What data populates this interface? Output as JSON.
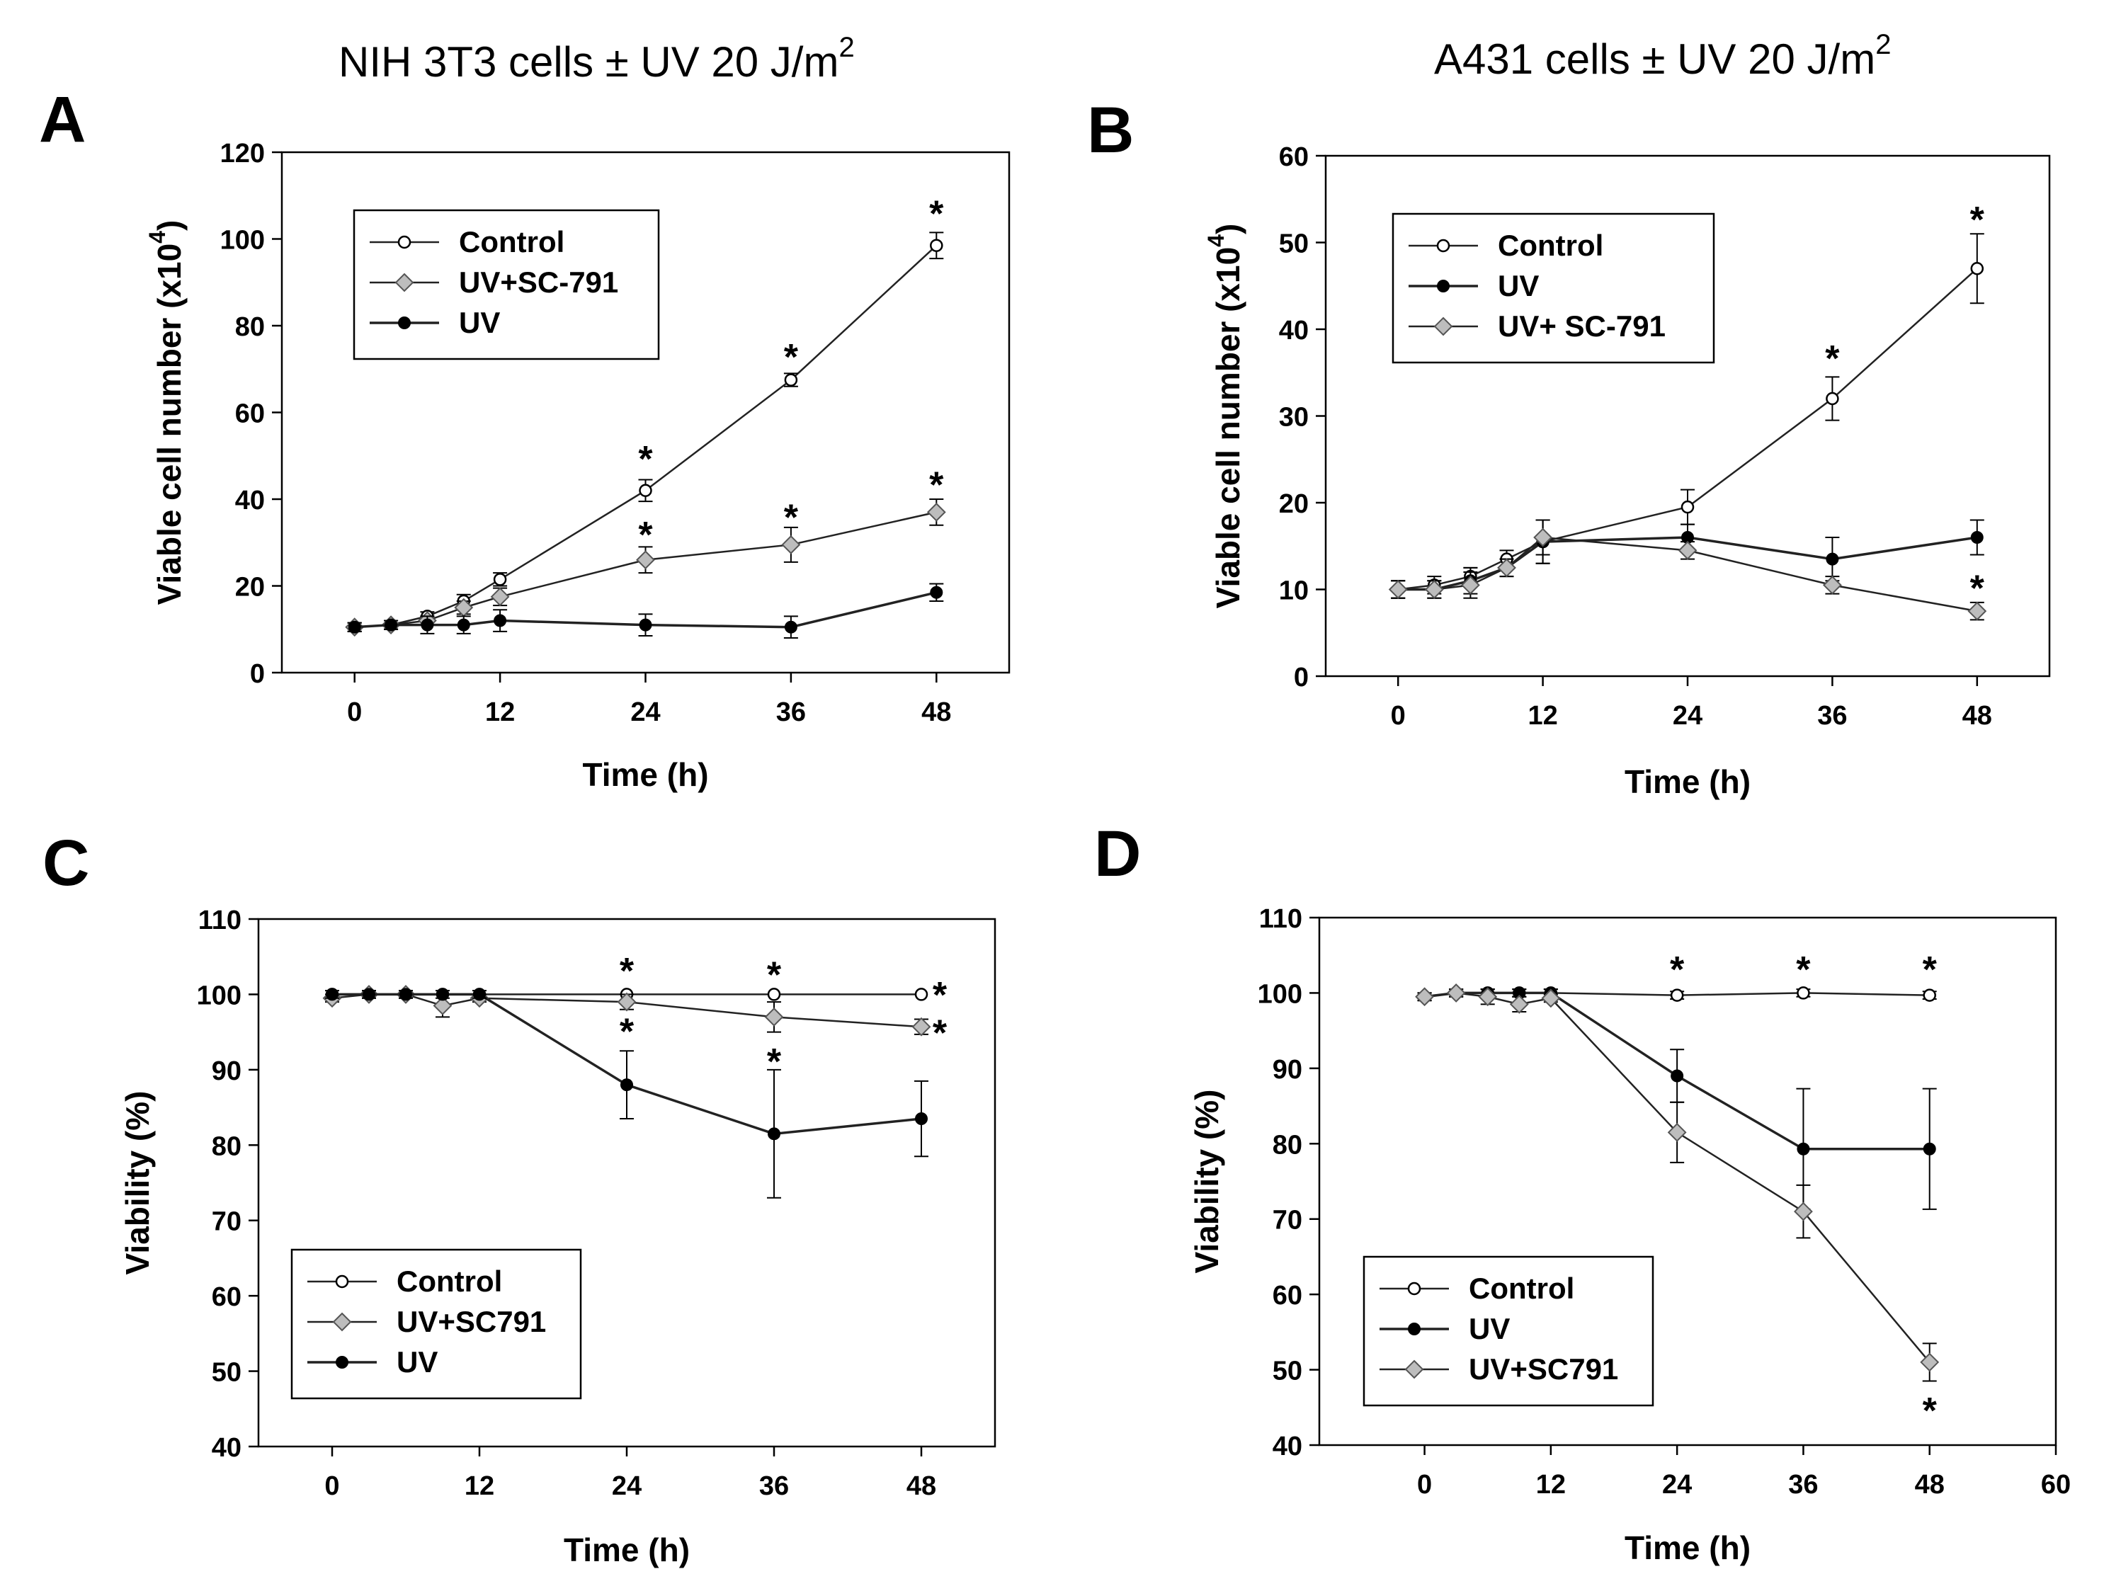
{
  "figure_title_left": "NIH 3T3 cells ± UV 20 J/m",
  "figure_title_left_sup": "2",
  "figure_title_right": "A431 cells ± UV 20 J/m",
  "figure_title_right_sup": "2",
  "chart_data": [
    {
      "panel": "A",
      "type": "line",
      "title": "NIH 3T3 cells ± UV 20 J/m2",
      "xlabel": "Time (h)",
      "ylabel": "Viable cell number (x10",
      "ylabel_sup": "4",
      "ylabel_close": ")",
      "xlim": [
        -6,
        54
      ],
      "ylim": [
        0,
        120
      ],
      "xticks": [
        0,
        12,
        24,
        36,
        48
      ],
      "yticks": [
        0,
        20,
        40,
        60,
        80,
        100,
        120
      ],
      "legend_position": "upper-left",
      "series": [
        {
          "name": "Control",
          "marker": "open-circle",
          "x": [
            0,
            3,
            6,
            9,
            12,
            24,
            36,
            48
          ],
          "values": [
            10.5,
            11,
            13,
            16.5,
            21.5,
            42,
            67.5,
            98.5
          ],
          "errors": [
            1,
            1,
            1,
            1.5,
            1.5,
            2.5,
            1.5,
            3
          ]
        },
        {
          "name": "UV+SC-791",
          "marker": "gray-diamond",
          "x": [
            0,
            3,
            6,
            9,
            12,
            24,
            36,
            48
          ],
          "values": [
            10.5,
            11,
            12,
            15,
            17.5,
            26,
            29.5,
            37
          ],
          "errors": [
            1,
            1,
            1,
            1.5,
            2,
            3,
            4,
            3
          ]
        },
        {
          "name": "UV",
          "marker": "filled-circle",
          "x": [
            0,
            3,
            6,
            9,
            12,
            24,
            36,
            48
          ],
          "values": [
            10.5,
            11,
            11,
            11,
            12,
            11,
            10.5,
            18.5
          ],
          "errors": [
            1,
            1,
            2,
            2,
            2.5,
            2.5,
            2.5,
            2
          ]
        }
      ],
      "annotations": [
        {
          "text": "*",
          "x": 24,
          "y": 50
        },
        {
          "text": "*",
          "x": 24,
          "y": 32.5
        },
        {
          "text": "*",
          "x": 36,
          "y": 73.5
        },
        {
          "text": "*",
          "x": 36,
          "y": 36.5
        },
        {
          "text": "*",
          "x": 48,
          "y": 106.5
        },
        {
          "text": "*",
          "x": 48,
          "y": 44
        }
      ]
    },
    {
      "panel": "B",
      "type": "line",
      "title": "A431 cells ± UV 20 J/m2",
      "xlabel": "Time (h)",
      "ylabel": "Viable cell number (x10",
      "ylabel_sup": "4",
      "ylabel_close": ")",
      "xlim": [
        -6,
        54
      ],
      "ylim": [
        0,
        60
      ],
      "xticks": [
        0,
        12,
        24,
        36,
        48
      ],
      "yticks": [
        0,
        10,
        20,
        30,
        40,
        50,
        60
      ],
      "legend_position": "upper-left",
      "series": [
        {
          "name": "Control",
          "marker": "open-circle",
          "x": [
            0,
            3,
            6,
            9,
            12,
            24,
            36,
            48
          ],
          "values": [
            10,
            10.5,
            11.5,
            13.5,
            15.5,
            19.5,
            32,
            47
          ],
          "errors": [
            1,
            1,
            1,
            1,
            2.5,
            2,
            2.5,
            4
          ]
        },
        {
          "name": "UV",
          "marker": "filled-circle",
          "x": [
            0,
            3,
            6,
            9,
            12,
            24,
            36,
            48
          ],
          "values": [
            10,
            10,
            11,
            12.5,
            15.5,
            16,
            13.5,
            16
          ],
          "errors": [
            1,
            1,
            1.5,
            1,
            2.5,
            1.5,
            2.5,
            2
          ]
        },
        {
          "name": "UV+ SC-791",
          "marker": "gray-diamond",
          "x": [
            0,
            3,
            6,
            9,
            12,
            24,
            36,
            48
          ],
          "values": [
            10,
            10,
            10.5,
            12.5,
            16,
            14.5,
            10.5,
            7.5
          ],
          "errors": [
            1,
            1,
            1.5,
            1,
            2,
            1,
            1,
            1
          ]
        }
      ],
      "annotations": [
        {
          "text": "*",
          "x": 36,
          "y": 37
        },
        {
          "text": "*",
          "x": 48,
          "y": 53
        },
        {
          "text": "*",
          "x": 48,
          "y": 10.5
        }
      ]
    },
    {
      "panel": "C",
      "type": "line",
      "title": "",
      "xlabel": "Time (h)",
      "ylabel": "Viability (%)",
      "ylabel_sup": "",
      "ylabel_close": "",
      "xlim": [
        -6,
        54
      ],
      "ylim": [
        40,
        110
      ],
      "xticks": [
        0,
        12,
        24,
        36,
        48
      ],
      "yticks": [
        40,
        50,
        60,
        70,
        80,
        90,
        100,
        110
      ],
      "legend_position": "lower-left",
      "series": [
        {
          "name": "Control",
          "marker": "open-circle",
          "x": [
            0,
            3,
            6,
            9,
            12,
            24,
            36,
            48
          ],
          "values": [
            100,
            100,
            100,
            100,
            100,
            100,
            100,
            100
          ],
          "errors": [
            0,
            0,
            0,
            0,
            0,
            0,
            0,
            0
          ]
        },
        {
          "name": "UV+SC791",
          "marker": "gray-diamond",
          "x": [
            0,
            3,
            6,
            9,
            12,
            24,
            36,
            48
          ],
          "values": [
            99.5,
            100,
            100,
            98.5,
            99.5,
            99,
            97,
            95.7
          ],
          "errors": [
            0.5,
            0.5,
            0.5,
            1.5,
            0.5,
            1,
            2,
            1
          ]
        },
        {
          "name": "UV",
          "marker": "filled-circle",
          "x": [
            0,
            3,
            6,
            9,
            12,
            24,
            36,
            48
          ],
          "values": [
            100,
            100,
            100,
            100,
            100,
            88,
            81.5,
            83.5
          ],
          "errors": [
            0.5,
            0.5,
            0.5,
            0.5,
            0.5,
            4.5,
            8.5,
            5
          ]
        }
      ],
      "annotations": [
        {
          "text": "*",
          "x": 24,
          "y": 103.5
        },
        {
          "text": "*",
          "x": 24,
          "y": 95.5
        },
        {
          "text": "*",
          "x": 36,
          "y": 103
        },
        {
          "text": "*",
          "x": 36,
          "y": 91.5
        },
        {
          "text": "*",
          "x": 49.5,
          "y": 100.3
        },
        {
          "text": "*",
          "x": 49.5,
          "y": 95.3
        }
      ]
    },
    {
      "panel": "D",
      "type": "line",
      "title": "",
      "xlabel": "Time (h)",
      "ylabel": "Viability (%)",
      "ylabel_sup": "",
      "ylabel_close": "",
      "xlim": [
        -10,
        60
      ],
      "ylim": [
        40,
        110
      ],
      "xticks": [
        0,
        12,
        24,
        36,
        48,
        60
      ],
      "yticks": [
        40,
        50,
        60,
        70,
        80,
        90,
        100,
        110
      ],
      "legend_position": "lower-left",
      "series": [
        {
          "name": "Control",
          "marker": "open-circle",
          "x": [
            0,
            3,
            6,
            9,
            12,
            24,
            36,
            48
          ],
          "values": [
            99.5,
            100,
            100,
            100,
            100,
            99.7,
            100,
            99.7
          ],
          "errors": [
            0.5,
            0.5,
            0.5,
            0.5,
            0.5,
            0.5,
            0.5,
            0.5
          ]
        },
        {
          "name": "UV",
          "marker": "filled-circle",
          "x": [
            0,
            3,
            6,
            9,
            12,
            24,
            36,
            48
          ],
          "values": [
            99.5,
            100,
            100,
            100,
            100,
            89,
            79.3,
            79.3
          ],
          "errors": [
            0.5,
            0.5,
            0.5,
            0.5,
            0.5,
            3.5,
            8,
            8
          ]
        },
        {
          "name": "UV+SC791",
          "marker": "gray-diamond",
          "x": [
            0,
            3,
            6,
            9,
            12,
            24,
            36,
            48
          ],
          "values": [
            99.5,
            100,
            99.5,
            98.5,
            99.3,
            81.5,
            71,
            51
          ],
          "errors": [
            0.5,
            0.5,
            1,
            1,
            0.5,
            4,
            3.5,
            2.5
          ]
        }
      ],
      "annotations": [
        {
          "text": "*",
          "x": 24,
          "y": 103.5
        },
        {
          "text": "*",
          "x": 36,
          "y": 103.5
        },
        {
          "text": "*",
          "x": 48,
          "y": 103.5
        },
        {
          "text": "*",
          "x": 48,
          "y": 45
        }
      ]
    }
  ]
}
